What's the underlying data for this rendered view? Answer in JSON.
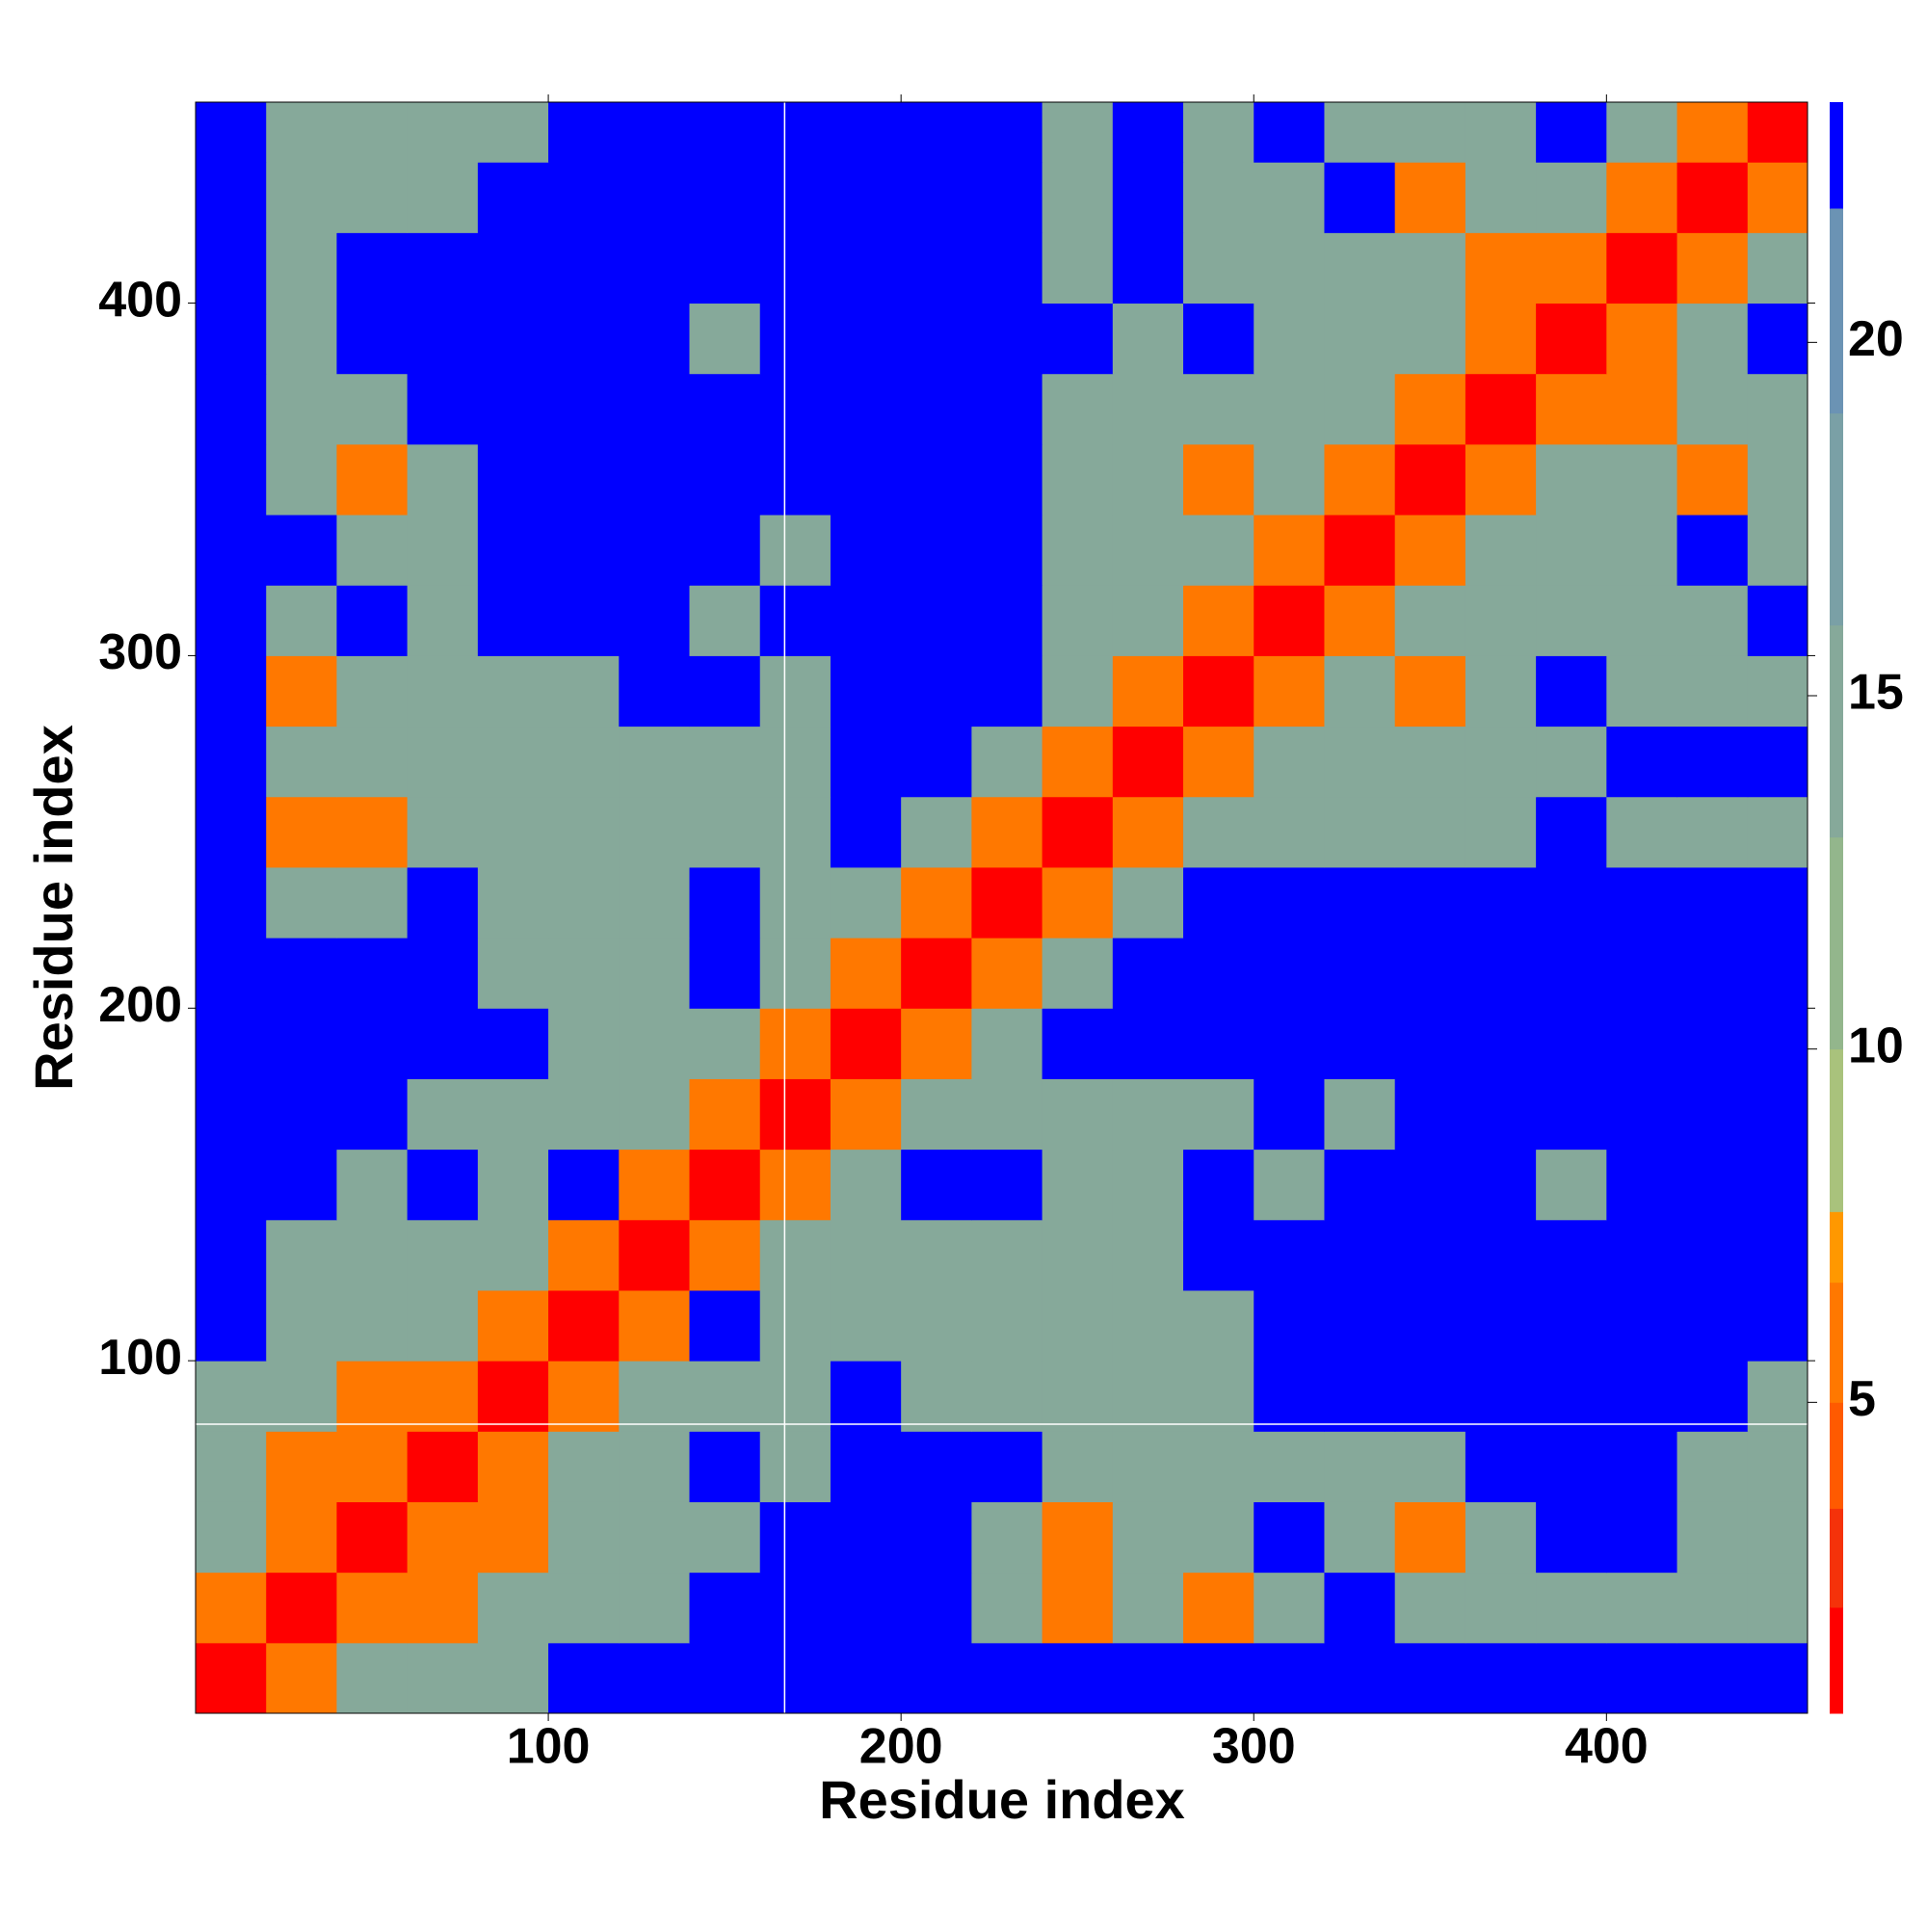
{
  "chart_data": {
    "type": "heatmap",
    "xlabel": "Residue index",
    "ylabel": "Residue index",
    "bins": [
      0,
      20,
      40,
      60,
      80,
      100,
      120,
      140,
      160,
      180,
      200,
      220,
      240,
      260,
      280,
      300,
      320,
      340,
      360,
      380,
      400,
      420,
      440,
      457
    ],
    "xlim": [
      0,
      457
    ],
    "ylim": [
      0,
      457
    ],
    "xticks": [
      100,
      200,
      300,
      400
    ],
    "yticks": [
      100,
      200,
      300,
      400
    ],
    "vlines": [
      167
    ],
    "hlines": [
      82
    ],
    "line_color": "#ffffff",
    "values": [
      [
        2,
        6,
        13,
        13,
        13,
        22,
        22,
        22,
        22,
        22,
        22,
        22,
        22,
        22,
        22,
        22,
        22,
        22,
        22,
        22,
        22,
        22,
        22
      ],
      [
        6,
        2,
        6,
        6,
        13,
        13,
        13,
        22,
        22,
        22,
        22,
        13,
        6,
        13,
        6,
        13,
        22,
        13,
        13,
        13,
        13,
        13,
        13
      ],
      [
        13,
        6,
        2,
        6,
        6,
        13,
        13,
        13,
        22,
        22,
        22,
        13,
        6,
        13,
        13,
        22,
        13,
        6,
        13,
        22,
        22,
        13,
        13
      ],
      [
        13,
        6,
        6,
        2,
        6,
        13,
        13,
        22,
        13,
        22,
        22,
        22,
        13,
        13,
        13,
        13,
        13,
        13,
        22,
        22,
        22,
        13,
        13
      ],
      [
        13,
        13,
        6,
        6,
        2,
        6,
        13,
        13,
        13,
        22,
        13,
        13,
        13,
        13,
        13,
        22,
        22,
        22,
        22,
        22,
        22,
        22,
        13
      ],
      [
        22,
        13,
        13,
        13,
        6,
        2,
        6,
        22,
        13,
        13,
        13,
        13,
        13,
        13,
        13,
        22,
        22,
        22,
        22,
        22,
        22,
        22,
        22
      ],
      [
        22,
        13,
        13,
        13,
        13,
        6,
        2,
        6,
        13,
        13,
        13,
        13,
        13,
        13,
        22,
        22,
        22,
        22,
        22,
        22,
        22,
        22,
        22
      ],
      [
        22,
        22,
        13,
        22,
        13,
        22,
        6,
        2,
        6,
        13,
        22,
        22,
        13,
        13,
        22,
        13,
        22,
        22,
        22,
        13,
        22,
        22,
        22
      ],
      [
        22,
        22,
        22,
        13,
        13,
        13,
        13,
        6,
        2,
        6,
        13,
        13,
        13,
        13,
        13,
        22,
        13,
        22,
        22,
        22,
        22,
        22,
        22
      ],
      [
        22,
        22,
        22,
        22,
        22,
        13,
        13,
        13,
        6,
        2,
        6,
        13,
        22,
        22,
        22,
        22,
        22,
        22,
        22,
        22,
        22,
        22,
        22
      ],
      [
        22,
        22,
        22,
        22,
        13,
        13,
        13,
        22,
        13,
        6,
        2,
        6,
        13,
        22,
        22,
        22,
        22,
        22,
        22,
        22,
        22,
        22,
        22
      ],
      [
        22,
        13,
        13,
        22,
        13,
        13,
        13,
        22,
        13,
        13,
        6,
        2,
        6,
        13,
        22,
        22,
        22,
        22,
        22,
        22,
        22,
        22,
        22
      ],
      [
        22,
        6,
        6,
        13,
        13,
        13,
        13,
        13,
        13,
        22,
        13,
        6,
        2,
        6,
        13,
        13,
        13,
        13,
        13,
        22,
        13,
        13,
        13
      ],
      [
        22,
        13,
        13,
        13,
        13,
        13,
        13,
        13,
        13,
        22,
        22,
        13,
        6,
        2,
        6,
        13,
        13,
        13,
        13,
        13,
        22,
        22,
        22
      ],
      [
        22,
        6,
        13,
        13,
        13,
        13,
        22,
        22,
        13,
        22,
        22,
        22,
        13,
        6,
        2,
        6,
        13,
        6,
        13,
        22,
        13,
        13,
        13
      ],
      [
        22,
        13,
        22,
        13,
        22,
        22,
        22,
        13,
        22,
        22,
        22,
        22,
        13,
        13,
        6,
        2,
        6,
        13,
        13,
        13,
        13,
        13,
        22
      ],
      [
        22,
        22,
        13,
        13,
        22,
        22,
        22,
        22,
        13,
        22,
        22,
        22,
        13,
        13,
        13,
        6,
        2,
        6,
        13,
        13,
        13,
        22,
        13
      ],
      [
        22,
        13,
        6,
        13,
        22,
        22,
        22,
        22,
        22,
        22,
        22,
        22,
        13,
        13,
        6,
        13,
        6,
        2,
        6,
        13,
        13,
        6,
        13
      ],
      [
        22,
        13,
        13,
        22,
        22,
        22,
        22,
        22,
        22,
        22,
        22,
        22,
        13,
        13,
        13,
        13,
        13,
        6,
        2,
        6,
        6,
        13,
        13
      ],
      [
        22,
        13,
        22,
        22,
        22,
        22,
        22,
        13,
        22,
        22,
        22,
        22,
        22,
        13,
        22,
        13,
        13,
        13,
        6,
        2,
        6,
        13,
        22
      ],
      [
        22,
        13,
        22,
        22,
        22,
        22,
        22,
        22,
        22,
        22,
        22,
        22,
        13,
        22,
        13,
        13,
        13,
        13,
        6,
        6,
        2,
        6,
        13
      ],
      [
        22,
        13,
        13,
        13,
        22,
        22,
        22,
        22,
        22,
        22,
        22,
        22,
        13,
        22,
        13,
        13,
        22,
        6,
        13,
        13,
        6,
        2,
        6
      ],
      [
        22,
        13,
        13,
        13,
        13,
        22,
        22,
        22,
        22,
        22,
        22,
        22,
        13,
        22,
        13,
        22,
        13,
        13,
        13,
        22,
        13,
        6,
        2
      ]
    ],
    "colorbar": {
      "levels": [
        0.6,
        2.1,
        3.5,
        5,
        6.7,
        7.7,
        10,
        13,
        16,
        19,
        21.9,
        23.4
      ],
      "colors": [
        "#ff0000",
        "#f5320a",
        "#ff5a00",
        "#ff7800",
        "#ff9800",
        "#a9c27c",
        "#93b68c",
        "#86a99a",
        "#7aa0a6",
        "#6b93b4",
        "#0000ff"
      ],
      "ticks": [
        5,
        10,
        15,
        20
      ]
    }
  }
}
